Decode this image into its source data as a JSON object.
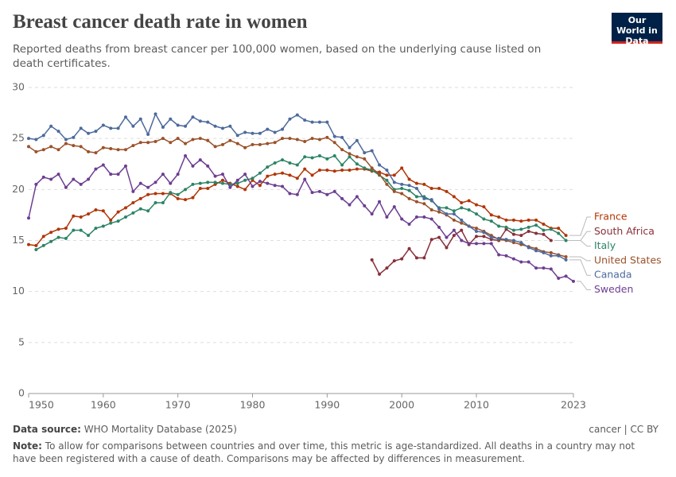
{
  "header": {
    "title": "Breast cancer death rate in women",
    "subtitle": "Reported deaths from breast cancer per 100,000 women, based on the underlying cause listed on death certificates.",
    "logo": "Our World in Data"
  },
  "footer": {
    "source_label": "Data source:",
    "source": "WHO Mortality Database (2025)",
    "license": "cancer | CC BY",
    "note_label": "Note:",
    "note": "To allow for comparisons between countries and over time, this metric is age-standardized. All deaths in a country may not have been registered with a cause of death. Comparisons may be affected by differences in measurement."
  },
  "chart_data": {
    "type": "line",
    "x": [
      1950,
      1951,
      1952,
      1953,
      1954,
      1955,
      1956,
      1957,
      1958,
      1959,
      1960,
      1961,
      1962,
      1963,
      1964,
      1965,
      1966,
      1967,
      1968,
      1969,
      1970,
      1971,
      1972,
      1973,
      1974,
      1975,
      1976,
      1977,
      1978,
      1979,
      1980,
      1981,
      1982,
      1983,
      1984,
      1985,
      1986,
      1987,
      1988,
      1989,
      1990,
      1991,
      1992,
      1993,
      1994,
      1995,
      1996,
      1997,
      1998,
      1999,
      2000,
      2001,
      2002,
      2003,
      2004,
      2005,
      2006,
      2007,
      2008,
      2009,
      2010,
      2011,
      2012,
      2013,
      2014,
      2015,
      2016,
      2017,
      2018,
      2019,
      2020,
      2021,
      2022,
      2023
    ],
    "xlim": [
      1950,
      2023
    ],
    "xticks": [
      1950,
      1960,
      1970,
      1980,
      1990,
      2000,
      2010,
      2023
    ],
    "ylim": [
      0,
      30
    ],
    "yticks": [
      0,
      5,
      10,
      15,
      20,
      25,
      30
    ],
    "grid": true,
    "series": [
      {
        "name": "France",
        "color": "#b13507",
        "values": [
          14.6,
          14.5,
          15.4,
          15.8,
          16.1,
          16.2,
          17.4,
          17.3,
          17.6,
          18.0,
          17.9,
          17.0,
          17.8,
          18.2,
          18.7,
          19.1,
          19.5,
          19.6,
          19.6,
          19.6,
          19.1,
          19.0,
          19.2,
          20.1,
          20.1,
          20.5,
          20.9,
          20.6,
          20.3,
          20.0,
          20.9,
          20.4,
          21.3,
          21.5,
          21.6,
          21.4,
          21.1,
          22.0,
          21.4,
          21.9,
          21.9,
          21.8,
          21.9,
          21.9,
          22.0,
          22.0,
          21.8,
          21.7,
          21.4,
          21.4,
          22.1,
          21.0,
          20.6,
          20.5,
          20.1,
          20.1,
          19.8,
          19.3,
          18.7,
          18.9,
          18.5,
          18.3,
          17.5,
          17.3,
          17.0,
          17.0,
          16.9,
          17.0,
          17.0,
          16.6,
          16.2,
          16.2,
          15.5,
          null
        ]
      },
      {
        "name": "South Africa",
        "color": "#883039",
        "values": [
          null,
          null,
          null,
          null,
          null,
          null,
          null,
          null,
          null,
          null,
          null,
          null,
          null,
          null,
          null,
          null,
          null,
          null,
          null,
          null,
          null,
          null,
          null,
          null,
          null,
          null,
          null,
          null,
          null,
          null,
          null,
          null,
          null,
          null,
          null,
          null,
          null,
          null,
          null,
          null,
          null,
          null,
          null,
          null,
          null,
          null,
          13.1,
          11.7,
          12.3,
          13.0,
          13.2,
          14.2,
          13.3,
          13.3,
          15.1,
          15.3,
          14.3,
          15.5,
          16.0,
          14.6,
          15.4,
          15.4,
          15.1,
          15.0,
          16.1,
          15.6,
          15.5,
          15.9,
          15.7,
          15.6,
          15.0,
          null,
          null,
          null
        ]
      },
      {
        "name": "Italy",
        "color": "#2c8465",
        "values": [
          null,
          14.1,
          14.5,
          14.9,
          15.3,
          15.2,
          16.0,
          16.0,
          15.5,
          16.2,
          16.4,
          16.7,
          16.9,
          17.3,
          17.7,
          18.1,
          17.9,
          18.7,
          18.7,
          19.7,
          19.5,
          20.0,
          20.5,
          20.6,
          20.7,
          20.7,
          20.6,
          20.5,
          20.6,
          20.9,
          21.1,
          21.6,
          22.2,
          22.6,
          22.9,
          22.6,
          22.4,
          23.2,
          23.1,
          23.3,
          23.0,
          23.3,
          22.4,
          23.2,
          22.5,
          22.1,
          21.9,
          21.4,
          20.9,
          20.0,
          20.1,
          19.9,
          19.3,
          19.3,
          18.9,
          18.2,
          18.2,
          17.9,
          18.2,
          18.0,
          17.6,
          17.1,
          16.9,
          16.4,
          16.3,
          16.0,
          16.1,
          16.3,
          16.5,
          16.0,
          16.1,
          15.7,
          15.0,
          null
        ]
      },
      {
        "name": "United States",
        "color": "#9a5129",
        "values": [
          24.2,
          23.7,
          23.9,
          24.2,
          23.9,
          24.5,
          24.3,
          24.2,
          23.7,
          23.6,
          24.1,
          24.0,
          23.9,
          23.9,
          24.3,
          24.6,
          24.6,
          24.7,
          25.0,
          24.6,
          25.0,
          24.5,
          24.9,
          25.0,
          24.8,
          24.2,
          24.4,
          24.8,
          24.5,
          24.1,
          24.4,
          24.4,
          24.5,
          24.6,
          25.0,
          25.0,
          24.9,
          24.7,
          25.0,
          24.9,
          25.1,
          24.6,
          23.9,
          23.5,
          23.2,
          23.0,
          22.1,
          21.5,
          20.5,
          19.8,
          19.6,
          19.1,
          18.8,
          18.6,
          18.0,
          17.8,
          17.5,
          17.0,
          16.7,
          16.4,
          16.2,
          15.9,
          15.5,
          15.1,
          15.0,
          14.8,
          14.6,
          14.4,
          14.2,
          13.9,
          13.8,
          13.6,
          13.4,
          null
        ]
      },
      {
        "name": "Canada",
        "color": "#4c6a9c",
        "values": [
          25.0,
          24.9,
          25.3,
          26.2,
          25.7,
          24.9,
          25.1,
          26.0,
          25.5,
          25.7,
          26.3,
          26.0,
          26.0,
          27.1,
          26.2,
          26.9,
          25.4,
          27.4,
          26.1,
          26.9,
          26.3,
          26.2,
          27.1,
          26.7,
          26.6,
          26.2,
          26.0,
          26.2,
          25.3,
          25.6,
          25.5,
          25.5,
          25.9,
          25.6,
          25.9,
          26.9,
          27.3,
          26.8,
          26.6,
          26.6,
          26.6,
          25.2,
          25.1,
          24.1,
          24.8,
          23.6,
          23.8,
          22.4,
          21.9,
          20.7,
          20.5,
          20.4,
          20.1,
          19.1,
          19.0,
          18.1,
          17.6,
          17.6,
          17.0,
          16.4,
          15.9,
          15.8,
          15.3,
          15.2,
          15.1,
          15.0,
          14.8,
          14.3,
          14.0,
          13.8,
          13.5,
          13.5,
          13.1,
          null
        ]
      },
      {
        "name": "Sweden",
        "color": "#6d3e91",
        "values": [
          17.2,
          20.5,
          21.2,
          21.0,
          21.5,
          20.2,
          21.0,
          20.5,
          21.0,
          22.0,
          22.4,
          21.5,
          21.5,
          22.3,
          19.8,
          20.6,
          20.2,
          20.7,
          21.5,
          20.6,
          21.5,
          23.3,
          22.3,
          22.9,
          22.3,
          21.3,
          21.5,
          20.2,
          20.9,
          21.5,
          20.3,
          20.8,
          20.6,
          20.4,
          20.3,
          19.6,
          19.5,
          21.0,
          19.7,
          19.8,
          19.5,
          19.8,
          19.1,
          18.5,
          19.3,
          18.4,
          17.6,
          18.8,
          17.3,
          18.3,
          17.1,
          16.6,
          17.3,
          17.3,
          17.1,
          16.3,
          15.3,
          16.0,
          15.0,
          14.7,
          14.7,
          14.7,
          14.7,
          13.6,
          13.5,
          13.2,
          12.9,
          12.9,
          12.3,
          12.3,
          12.2,
          11.3,
          11.5,
          11.0
        ]
      }
    ]
  }
}
